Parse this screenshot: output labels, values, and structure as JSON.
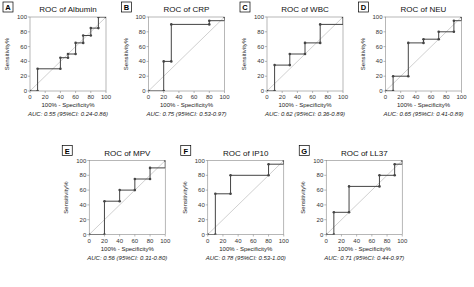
{
  "chart_data": [
    {
      "type": "step",
      "title": "ROC of Albumin",
      "x_label": "100% - Specificity%",
      "y_label": "Sensitivity%",
      "annotations": [
        "A",
        "AUC: 0.55 (95%CI: 0.24-0.86)"
      ],
      "x": [
        0,
        10,
        10,
        40,
        40,
        50,
        50,
        60,
        60,
        70,
        70,
        80,
        80,
        90,
        90,
        100
      ],
      "values": [
        0,
        0,
        30,
        30,
        45,
        45,
        50,
        50,
        65,
        65,
        75,
        75,
        85,
        85,
        100,
        100
      ],
      "color": "#444444",
      "marker": "dot",
      "xlim": [
        0,
        100
      ],
      "ylim": [
        0,
        100
      ],
      "xticks": [
        0,
        20,
        40,
        60,
        80,
        100
      ],
      "yticks": [
        0,
        20,
        40,
        60,
        80,
        100
      ]
    },
    {
      "type": "step",
      "title": "ROC of CRP",
      "x_label": "100% - Specificity%",
      "y_label": "Sensitivity%",
      "annotations": [
        "B",
        "AUC: 0.75 (95%CI: 0.53-0.97)"
      ],
      "x": [
        0,
        20,
        20,
        30,
        30,
        80,
        80,
        100
      ],
      "values": [
        0,
        0,
        40,
        40,
        90,
        90,
        95,
        100
      ],
      "color": "#444444",
      "marker": "dot",
      "xlim": [
        0,
        100
      ],
      "ylim": [
        0,
        100
      ],
      "xticks": [
        0,
        20,
        40,
        60,
        80,
        100
      ],
      "yticks": [
        0,
        20,
        40,
        60,
        80,
        100
      ]
    },
    {
      "type": "step",
      "title": "ROC of WBC",
      "x_label": "100% - Specificity%",
      "y_label": "Sensitivity%",
      "annotations": [
        "C",
        "AUC: 0.62 (95%CI: 0.36-0.89)"
      ],
      "x": [
        0,
        10,
        10,
        30,
        30,
        50,
        50,
        70,
        70,
        100
      ],
      "values": [
        0,
        0,
        35,
        35,
        50,
        50,
        65,
        65,
        90,
        100
      ],
      "color": "#444444",
      "marker": "dot",
      "xlim": [
        0,
        100
      ],
      "ylim": [
        0,
        100
      ],
      "xticks": [
        0,
        20,
        40,
        60,
        80,
        100
      ],
      "yticks": [
        0,
        20,
        40,
        60,
        80,
        100
      ]
    },
    {
      "type": "step",
      "title": "ROC of NEU",
      "x_label": "100% - Specificity%",
      "y_label": "Sensitivity%",
      "annotations": [
        "D",
        "AUC: 0.65 (95%CI: 0.41-0.89)"
      ],
      "x": [
        0,
        10,
        10,
        30,
        30,
        50,
        50,
        70,
        70,
        90,
        90,
        100
      ],
      "values": [
        0,
        0,
        20,
        20,
        65,
        65,
        70,
        70,
        80,
        80,
        95,
        100
      ],
      "color": "#444444",
      "marker": "dot",
      "xlim": [
        0,
        100
      ],
      "ylim": [
        0,
        100
      ],
      "xticks": [
        0,
        20,
        40,
        60,
        80,
        100
      ],
      "yticks": [
        0,
        20,
        40,
        60,
        80,
        100
      ]
    },
    {
      "type": "step",
      "title": "ROC of MPV",
      "x_label": "100% - Specificity%",
      "y_label": "Sensitivity%",
      "annotations": [
        "E",
        "AUC: 0.56 (95%CI: 0.31-0.80)"
      ],
      "x": [
        0,
        20,
        20,
        40,
        40,
        60,
        60,
        80,
        80,
        100
      ],
      "values": [
        0,
        0,
        45,
        45,
        60,
        60,
        75,
        75,
        90,
        100
      ],
      "color": "#444444",
      "marker": "dot",
      "xlim": [
        0,
        100
      ],
      "ylim": [
        0,
        100
      ],
      "xticks": [
        0,
        20,
        40,
        60,
        80,
        100
      ],
      "yticks": [
        0,
        20,
        40,
        60,
        80,
        100
      ]
    },
    {
      "type": "step",
      "title": "ROC of IP10",
      "x_label": "100% - Specificity%",
      "y_label": "Sensitivity%",
      "annotations": [
        "F",
        "AUC: 0.78 (95%CI: 0.53-1.00)"
      ],
      "x": [
        0,
        10,
        10,
        30,
        30,
        80,
        80,
        100
      ],
      "values": [
        0,
        0,
        55,
        55,
        80,
        80,
        95,
        100
      ],
      "color": "#444444",
      "marker": "dot",
      "xlim": [
        0,
        100
      ],
      "ylim": [
        0,
        100
      ],
      "xticks": [
        0,
        20,
        40,
        60,
        80,
        100
      ],
      "yticks": [
        0,
        20,
        40,
        60,
        80,
        100
      ]
    },
    {
      "type": "step",
      "title": "ROC of LL37",
      "x_label": "100% - Specificity%",
      "y_label": "Sensitivity%",
      "annotations": [
        "G",
        "AUC: 0.71 (95%CI: 0.44-0.97)"
      ],
      "x": [
        0,
        10,
        10,
        30,
        30,
        70,
        70,
        90,
        90,
        100
      ],
      "values": [
        0,
        0,
        30,
        30,
        65,
        65,
        80,
        80,
        95,
        100
      ],
      "color": "#444444",
      "marker": "dot",
      "xlim": [
        0,
        100
      ],
      "ylim": [
        0,
        100
      ],
      "xticks": [
        0,
        20,
        40,
        60,
        80,
        100
      ],
      "yticks": [
        0,
        20,
        40,
        60,
        80,
        100
      ]
    }
  ]
}
